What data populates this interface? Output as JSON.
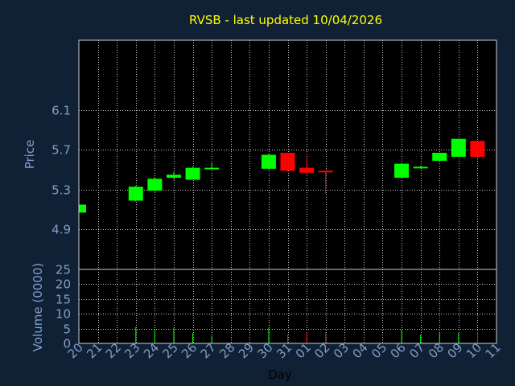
{
  "chart_data": {
    "type": "candlestick",
    "title": "RVSB - last updated 10/04/2026",
    "xlabel": "Day",
    "price_panel": {
      "ylabel": "Price",
      "yticks": [
        "6.1",
        "5.7",
        "5.3",
        "4.9"
      ],
      "ylim": [
        4.5,
        6.8
      ]
    },
    "volume_panel": {
      "ylabel": "Volume (0000)",
      "yticks": [
        "25",
        "20",
        "15",
        "10",
        "5",
        "0"
      ],
      "ylim": [
        0,
        25
      ]
    },
    "x_labels": [
      "20",
      "21",
      "22",
      "23",
      "24",
      "25",
      "26",
      "27",
      "28",
      "29",
      "30",
      "31",
      "01",
      "02",
      "03",
      "04",
      "05",
      "06",
      "07",
      "08",
      "09",
      "10",
      "11"
    ],
    "grid": true,
    "colors": {
      "up": "#00ff00",
      "down": "#ff0000",
      "title": "#ffff00",
      "axis_text": "#7fa0c8",
      "background": "#102035"
    },
    "candles": [
      {
        "x": "20",
        "open": 5.07,
        "high": 5.15,
        "low": 5.07,
        "close": 5.15,
        "volume": 0.2
      },
      {
        "x": "23",
        "open": 5.19,
        "high": 5.34,
        "low": 5.18,
        "close": 5.33,
        "volume": 5.5
      },
      {
        "x": "24",
        "open": 5.29,
        "high": 5.43,
        "low": 5.28,
        "close": 5.41,
        "volume": 4.8
      },
      {
        "x": "25",
        "open": 5.42,
        "high": 5.48,
        "low": 5.4,
        "close": 5.45,
        "volume": 5.2
      },
      {
        "x": "26",
        "open": 5.4,
        "high": 5.53,
        "low": 5.4,
        "close": 5.52,
        "volume": 3.5
      },
      {
        "x": "27",
        "open": 5.51,
        "high": 5.57,
        "low": 5.5,
        "close": 5.52,
        "volume": 2.5
      },
      {
        "x": "30",
        "open": 5.51,
        "high": 5.66,
        "low": 5.5,
        "close": 5.65,
        "volume": 5.2
      },
      {
        "x": "31",
        "open": 5.67,
        "high": 5.67,
        "low": 5.48,
        "close": 5.49,
        "volume": 3.0
      },
      {
        "x": "01",
        "open": 5.52,
        "high": 5.62,
        "low": 5.46,
        "close": 5.47,
        "volume": 3.8
      },
      {
        "x": "02",
        "open": 5.49,
        "high": 5.49,
        "low": 5.26,
        "close": 5.48,
        "volume": 3.8
      },
      {
        "x": "06",
        "open": 5.42,
        "high": 5.57,
        "low": 5.42,
        "close": 5.56,
        "volume": 4.5
      },
      {
        "x": "07",
        "open": 5.52,
        "high": 5.54,
        "low": 5.52,
        "close": 5.53,
        "volume": 3.0
      },
      {
        "x": "08",
        "open": 5.59,
        "high": 5.67,
        "low": 5.59,
        "close": 5.67,
        "volume": 3.5
      },
      {
        "x": "09",
        "open": 5.63,
        "high": 5.81,
        "low": 5.63,
        "close": 5.81,
        "volume": 3.5
      },
      {
        "x": "10",
        "open": 5.79,
        "high": 5.79,
        "low": 5.6,
        "close": 5.63,
        "volume": 3.8
      }
    ]
  }
}
